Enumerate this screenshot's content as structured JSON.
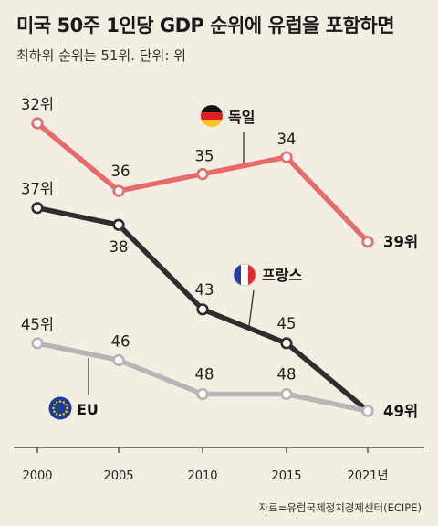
{
  "title": "미국 50주 1인당 GDP 순위에 유럽을 포함하면",
  "subtitle": "최하위 순위는 51위. 단위: 위",
  "source": "자료=유럽국제정치경제센터(ECIPE)",
  "chart_data": {
    "type": "line",
    "x": [
      2000,
      2005,
      2010,
      2015,
      2021
    ],
    "x_tick_labels": [
      "2000",
      "2005",
      "2010",
      "2015",
      "2021년"
    ],
    "y_axis": "rank (inverted: lower rank number drawn higher)",
    "ylim": [
      30,
      51
    ],
    "grid": false,
    "series": [
      {
        "name": "독일",
        "color": "#e86a6a",
        "flag": "germany-flag",
        "values": [
          32,
          36,
          35,
          34,
          39
        ],
        "labels": [
          "32위",
          "36",
          "35",
          "34",
          "39위"
        ]
      },
      {
        "name": "프랑스",
        "color": "#2e2e2e",
        "flag": "france-flag",
        "values": [
          37,
          38,
          43,
          45,
          49
        ],
        "labels": [
          "37위",
          "38",
          "43",
          "45",
          "49위"
        ]
      },
      {
        "name": "EU",
        "color": "#b5b5b5",
        "flag": "eu-flag",
        "values": [
          45,
          46,
          48,
          48,
          49
        ],
        "labels": [
          "45위",
          "46",
          "48",
          "48",
          ""
        ]
      }
    ]
  }
}
